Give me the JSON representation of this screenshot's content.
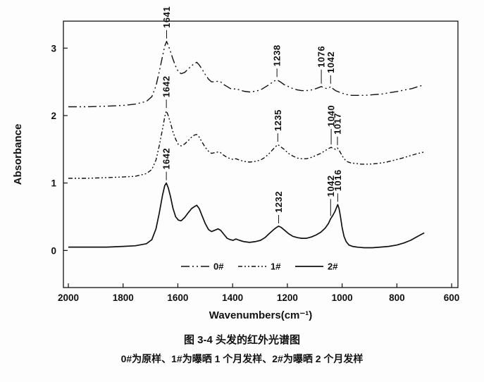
{
  "figure": {
    "caption_title": "图 3-4 头发的红外光谱图",
    "caption_subtitle": "0#为原样、1#为曝晒 1 个月发样、2#为曝晒 2 个月发样"
  },
  "colors": {
    "ink": "#111111"
  },
  "chart_data": {
    "type": "line",
    "title": "",
    "xlabel": "Wavenumbers(cm⁻¹)",
    "ylabel": "Absorbance",
    "x_axis_reversed": true,
    "grid": false,
    "xlim": [
      2018,
      577
    ],
    "ylim": [
      -0.55,
      3.4
    ],
    "x_ticks": [
      2000,
      1800,
      1600,
      1400,
      1200,
      1000,
      800,
      600
    ],
    "y_ticks": [
      0,
      1,
      2,
      3
    ],
    "legend": {
      "position": "inside-bottom-center",
      "items": [
        {
          "label": "0#",
          "style": "long-dash-dot-dot"
        },
        {
          "label": "1#",
          "style": "dash-dot-dot"
        },
        {
          "label": "2#",
          "style": "solid"
        }
      ]
    },
    "series": [
      {
        "name": "0#",
        "style": "long-dash-dot-dot",
        "color": "#111111",
        "peaks": [
          {
            "x": 1641,
            "y": 3.1,
            "label": "1641"
          },
          {
            "x": 1238,
            "y": 2.53,
            "label": "1238"
          },
          {
            "x": 1076,
            "y": 2.43,
            "label": "1076",
            "line": 20
          },
          {
            "x": 1042,
            "y": 2.43,
            "label": "1042",
            "line": 12
          }
        ],
        "points": [
          [
            2000,
            2.13
          ],
          [
            1930,
            2.13
          ],
          [
            1860,
            2.14
          ],
          [
            1800,
            2.15
          ],
          [
            1755,
            2.17
          ],
          [
            1715,
            2.21
          ],
          [
            1695,
            2.28
          ],
          [
            1680,
            2.44
          ],
          [
            1668,
            2.65
          ],
          [
            1656,
            2.88
          ],
          [
            1648,
            3.03
          ],
          [
            1641,
            3.1
          ],
          [
            1634,
            3.03
          ],
          [
            1627,
            2.95
          ],
          [
            1618,
            2.84
          ],
          [
            1608,
            2.73
          ],
          [
            1598,
            2.65
          ],
          [
            1588,
            2.62
          ],
          [
            1575,
            2.64
          ],
          [
            1562,
            2.69
          ],
          [
            1550,
            2.74
          ],
          [
            1540,
            2.77
          ],
          [
            1531,
            2.79
          ],
          [
            1522,
            2.75
          ],
          [
            1512,
            2.69
          ],
          [
            1500,
            2.61
          ],
          [
            1488,
            2.54
          ],
          [
            1477,
            2.5
          ],
          [
            1465,
            2.5
          ],
          [
            1453,
            2.51
          ],
          [
            1444,
            2.5
          ],
          [
            1432,
            2.46
          ],
          [
            1420,
            2.43
          ],
          [
            1408,
            2.4
          ],
          [
            1398,
            2.39
          ],
          [
            1388,
            2.4
          ],
          [
            1375,
            2.38
          ],
          [
            1358,
            2.36
          ],
          [
            1338,
            2.35
          ],
          [
            1318,
            2.36
          ],
          [
            1298,
            2.38
          ],
          [
            1282,
            2.42
          ],
          [
            1266,
            2.46
          ],
          [
            1250,
            2.51
          ],
          [
            1238,
            2.53
          ],
          [
            1226,
            2.5
          ],
          [
            1212,
            2.46
          ],
          [
            1196,
            2.43
          ],
          [
            1180,
            2.4
          ],
          [
            1163,
            2.38
          ],
          [
            1148,
            2.37
          ],
          [
            1130,
            2.37
          ],
          [
            1112,
            2.38
          ],
          [
            1095,
            2.4
          ],
          [
            1076,
            2.43
          ],
          [
            1066,
            2.41
          ],
          [
            1056,
            2.4
          ],
          [
            1048,
            2.41
          ],
          [
            1042,
            2.43
          ],
          [
            1034,
            2.4
          ],
          [
            1024,
            2.37
          ],
          [
            1012,
            2.35
          ],
          [
            998,
            2.33
          ],
          [
            982,
            2.31
          ],
          [
            965,
            2.3
          ],
          [
            945,
            2.3
          ],
          [
            915,
            2.3
          ],
          [
            885,
            2.31
          ],
          [
            855,
            2.32
          ],
          [
            825,
            2.34
          ],
          [
            795,
            2.36
          ],
          [
            770,
            2.38
          ],
          [
            745,
            2.4
          ],
          [
            722,
            2.43
          ],
          [
            705,
            2.45
          ],
          [
            700,
            2.45
          ]
        ]
      },
      {
        "name": "1#",
        "style": "dash-dot-dot",
        "color": "#111111",
        "peaks": [
          {
            "x": 1642,
            "y": 2.07,
            "label": "1642"
          },
          {
            "x": 1235,
            "y": 1.57,
            "label": "1235"
          },
          {
            "x": 1040,
            "y": 1.53,
            "label": "1040",
            "line": 22
          },
          {
            "x": 1017,
            "y": 1.52,
            "label": "1017",
            "line": 12
          }
        ],
        "points": [
          [
            2000,
            1.07
          ],
          [
            1930,
            1.07
          ],
          [
            1860,
            1.08
          ],
          [
            1800,
            1.09
          ],
          [
            1755,
            1.1
          ],
          [
            1715,
            1.14
          ],
          [
            1695,
            1.2
          ],
          [
            1680,
            1.34
          ],
          [
            1668,
            1.55
          ],
          [
            1656,
            1.8
          ],
          [
            1648,
            1.98
          ],
          [
            1642,
            2.07
          ],
          [
            1635,
            2.0
          ],
          [
            1627,
            1.89
          ],
          [
            1618,
            1.76
          ],
          [
            1608,
            1.65
          ],
          [
            1598,
            1.57
          ],
          [
            1588,
            1.55
          ],
          [
            1575,
            1.58
          ],
          [
            1562,
            1.63
          ],
          [
            1550,
            1.68
          ],
          [
            1540,
            1.71
          ],
          [
            1531,
            1.72
          ],
          [
            1522,
            1.68
          ],
          [
            1512,
            1.61
          ],
          [
            1500,
            1.53
          ],
          [
            1488,
            1.47
          ],
          [
            1477,
            1.44
          ],
          [
            1465,
            1.45
          ],
          [
            1453,
            1.46
          ],
          [
            1444,
            1.45
          ],
          [
            1432,
            1.41
          ],
          [
            1420,
            1.38
          ],
          [
            1408,
            1.36
          ],
          [
            1398,
            1.35
          ],
          [
            1388,
            1.36
          ],
          [
            1375,
            1.34
          ],
          [
            1358,
            1.32
          ],
          [
            1338,
            1.31
          ],
          [
            1318,
            1.32
          ],
          [
            1298,
            1.34
          ],
          [
            1282,
            1.38
          ],
          [
            1266,
            1.44
          ],
          [
            1250,
            1.51
          ],
          [
            1240,
            1.55
          ],
          [
            1235,
            1.57
          ],
          [
            1225,
            1.54
          ],
          [
            1212,
            1.5
          ],
          [
            1196,
            1.44
          ],
          [
            1180,
            1.4
          ],
          [
            1163,
            1.37
          ],
          [
            1148,
            1.36
          ],
          [
            1130,
            1.36
          ],
          [
            1112,
            1.38
          ],
          [
            1095,
            1.41
          ],
          [
            1078,
            1.44
          ],
          [
            1062,
            1.48
          ],
          [
            1050,
            1.51
          ],
          [
            1040,
            1.53
          ],
          [
            1032,
            1.51
          ],
          [
            1024,
            1.5
          ],
          [
            1017,
            1.52
          ],
          [
            1010,
            1.48
          ],
          [
            1002,
            1.42
          ],
          [
            993,
            1.36
          ],
          [
            983,
            1.32
          ],
          [
            970,
            1.3
          ],
          [
            952,
            1.29
          ],
          [
            930,
            1.28
          ],
          [
            900,
            1.28
          ],
          [
            868,
            1.29
          ],
          [
            838,
            1.31
          ],
          [
            808,
            1.34
          ],
          [
            780,
            1.37
          ],
          [
            755,
            1.4
          ],
          [
            730,
            1.43
          ],
          [
            710,
            1.45
          ],
          [
            700,
            1.46
          ]
        ]
      },
      {
        "name": "2#",
        "style": "solid",
        "color": "#111111",
        "peaks": [
          {
            "x": 1642,
            "y": 1.0,
            "label": "1642"
          },
          {
            "x": 1232,
            "y": 0.36,
            "label": "1232"
          },
          {
            "x": 1042,
            "y": 0.47,
            "label": "1042",
            "line": 24
          },
          {
            "x": 1016,
            "y": 0.68,
            "label": "1016",
            "line": 12
          }
        ],
        "points": [
          [
            2000,
            0.05
          ],
          [
            1930,
            0.05
          ],
          [
            1860,
            0.05
          ],
          [
            1800,
            0.06
          ],
          [
            1755,
            0.07
          ],
          [
            1715,
            0.1
          ],
          [
            1695,
            0.16
          ],
          [
            1680,
            0.32
          ],
          [
            1668,
            0.55
          ],
          [
            1656,
            0.82
          ],
          [
            1648,
            0.96
          ],
          [
            1642,
            1.0
          ],
          [
            1635,
            0.93
          ],
          [
            1627,
            0.8
          ],
          [
            1618,
            0.63
          ],
          [
            1608,
            0.5
          ],
          [
            1598,
            0.45
          ],
          [
            1588,
            0.44
          ],
          [
            1575,
            0.49
          ],
          [
            1562,
            0.56
          ],
          [
            1550,
            0.62
          ],
          [
            1540,
            0.65
          ],
          [
            1531,
            0.67
          ],
          [
            1522,
            0.62
          ],
          [
            1512,
            0.52
          ],
          [
            1500,
            0.4
          ],
          [
            1488,
            0.31
          ],
          [
            1477,
            0.28
          ],
          [
            1465,
            0.3
          ],
          [
            1453,
            0.32
          ],
          [
            1444,
            0.3
          ],
          [
            1432,
            0.24
          ],
          [
            1420,
            0.18
          ],
          [
            1408,
            0.16
          ],
          [
            1398,
            0.15
          ],
          [
            1388,
            0.17
          ],
          [
            1375,
            0.15
          ],
          [
            1358,
            0.13
          ],
          [
            1338,
            0.12
          ],
          [
            1318,
            0.13
          ],
          [
            1298,
            0.15
          ],
          [
            1282,
            0.19
          ],
          [
            1266,
            0.25
          ],
          [
            1250,
            0.31
          ],
          [
            1240,
            0.34
          ],
          [
            1232,
            0.36
          ],
          [
            1222,
            0.34
          ],
          [
            1210,
            0.3
          ],
          [
            1196,
            0.25
          ],
          [
            1180,
            0.21
          ],
          [
            1163,
            0.19
          ],
          [
            1148,
            0.18
          ],
          [
            1130,
            0.18
          ],
          [
            1112,
            0.2
          ],
          [
            1095,
            0.23
          ],
          [
            1078,
            0.27
          ],
          [
            1062,
            0.33
          ],
          [
            1050,
            0.4
          ],
          [
            1042,
            0.47
          ],
          [
            1034,
            0.52
          ],
          [
            1026,
            0.58
          ],
          [
            1019,
            0.65
          ],
          [
            1016,
            0.68
          ],
          [
            1011,
            0.62
          ],
          [
            1006,
            0.5
          ],
          [
            1000,
            0.34
          ],
          [
            993,
            0.21
          ],
          [
            985,
            0.13
          ],
          [
            975,
            0.08
          ],
          [
            962,
            0.06
          ],
          [
            945,
            0.05
          ],
          [
            920,
            0.04
          ],
          [
            890,
            0.04
          ],
          [
            860,
            0.05
          ],
          [
            830,
            0.06
          ],
          [
            800,
            0.08
          ],
          [
            775,
            0.11
          ],
          [
            750,
            0.15
          ],
          [
            728,
            0.2
          ],
          [
            710,
            0.24
          ],
          [
            700,
            0.26
          ]
        ]
      }
    ]
  }
}
